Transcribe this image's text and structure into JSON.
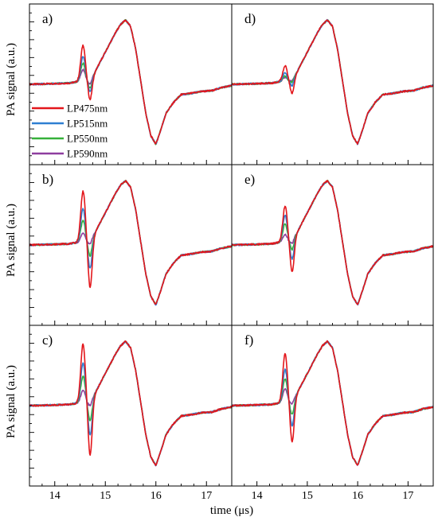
{
  "figure": {
    "ylabel": "PA signal (a.u.)",
    "xlabel": "time (μs)"
  },
  "legend": [
    {
      "name": "LP475nm",
      "color": "#e3161b"
    },
    {
      "name": "LP515nm",
      "color": "#2e7fd1"
    },
    {
      "name": "LP550nm",
      "color": "#36b13a"
    },
    {
      "name": "LP590nm",
      "color": "#8e3d9f"
    }
  ],
  "chart_data": {
    "type": "line",
    "xlim": [
      13.5,
      17.5
    ],
    "xticks": [
      14,
      15,
      16,
      17
    ],
    "xtick_labels": [
      "14",
      "15",
      "16",
      "17"
    ],
    "ylim": [
      -1.15,
      1.15
    ],
    "grid": false,
    "legend_placement": "left, in panel a",
    "series_names": [
      "LP475nm",
      "LP515nm",
      "LP550nm",
      "LP590nm"
    ],
    "series_colors": [
      "#e3161b",
      "#2e7fd1",
      "#36b13a",
      "#8e3d9f"
    ],
    "common_shape": {
      "x": [
        13.5,
        14.0,
        14.3,
        14.45,
        14.55,
        14.62,
        14.7,
        14.8,
        14.9,
        15.0,
        15.1,
        15.2,
        15.3,
        15.4,
        15.5,
        15.6,
        15.7,
        15.8,
        15.9,
        16.0,
        16.1,
        16.2,
        16.35,
        16.5,
        16.7,
        16.9,
        17.1,
        17.3,
        17.5
      ],
      "y": [
        0.0,
        0.01,
        0.02,
        0.04,
        0.06,
        0.05,
        0.08,
        0.2,
        0.35,
        0.5,
        0.65,
        0.8,
        0.93,
        1.0,
        0.9,
        0.55,
        0.05,
        -0.45,
        -0.8,
        -0.93,
        -0.7,
        -0.45,
        -0.28,
        -0.16,
        -0.14,
        -0.11,
        -0.1,
        -0.05,
        -0.02
      ]
    },
    "panels": [
      {
        "label": "a)",
        "peak_amplitude": [
          0.55,
          0.37,
          0.27,
          0.17
        ],
        "trough_amplitude": [
          -0.32,
          -0.2,
          -0.14,
          -0.08
        ]
      },
      {
        "label": "b)",
        "peak_amplitude": [
          0.78,
          0.5,
          0.32,
          0.12
        ],
        "trough_amplitude": [
          -0.75,
          -0.45,
          -0.25,
          -0.06
        ]
      },
      {
        "label": "c)",
        "peak_amplitude": [
          0.9,
          0.6,
          0.4,
          0.18
        ],
        "trough_amplitude": [
          -0.85,
          -0.55,
          -0.32,
          -0.08
        ]
      },
      {
        "label": "d)",
        "peak_amplitude": [
          0.23,
          0.12,
          0.07,
          0.05
        ],
        "trough_amplitude": [
          -0.22,
          -0.1,
          -0.05,
          -0.03
        ]
      },
      {
        "label": "e)",
        "peak_amplitude": [
          0.55,
          0.4,
          0.27,
          0.1
        ],
        "trough_amplitude": [
          -0.5,
          -0.3,
          -0.15,
          -0.05
        ]
      },
      {
        "label": "f)",
        "peak_amplitude": [
          0.75,
          0.5,
          0.35,
          0.2
        ],
        "trough_amplitude": [
          -0.65,
          -0.4,
          -0.22,
          -0.05
        ]
      }
    ]
  }
}
